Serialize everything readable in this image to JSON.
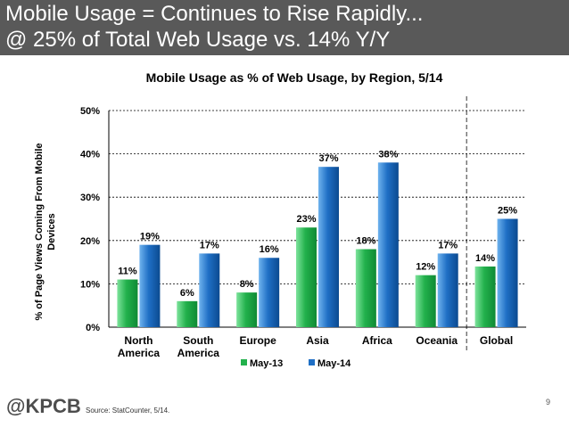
{
  "slide": {
    "title_line1": "Mobile Usage = Continues to Rise Rapidly...",
    "title_line2": "@ 25% of Total Web Usage vs. 14% Y/Y",
    "logo": "@KPCB",
    "source": "Source: StatCounter, 5/14.",
    "page_number": "9"
  },
  "colors": {
    "header_bg": "#595959",
    "may13": "#22b14c",
    "may14": "#1f6fc5",
    "text": "#000000"
  },
  "chart_data": {
    "type": "bar",
    "title": "Mobile Usage as % of Web Usage, by Region, 5/14",
    "ylabel": "% of Page Views Coming From Mobile Devices",
    "ylabel_lines": [
      "% of Page Views Coming From Mobile",
      "Devices"
    ],
    "xlabel": "",
    "ylim": [
      0,
      50
    ],
    "yticks": [
      "0%",
      "10%",
      "20%",
      "30%",
      "40%",
      "50%"
    ],
    "categories": [
      [
        "North",
        "America"
      ],
      [
        "South",
        "America"
      ],
      [
        "Europe"
      ],
      [
        "Asia"
      ],
      [
        "Africa"
      ],
      [
        "Oceania"
      ],
      [
        "Global"
      ]
    ],
    "series": [
      {
        "name": "May-13",
        "values": [
          11,
          6,
          8,
          23,
          18,
          12,
          14
        ],
        "labels": [
          "11%",
          "6%",
          "8%",
          "23%",
          "18%",
          "12%",
          "14%"
        ]
      },
      {
        "name": "May-14",
        "values": [
          19,
          17,
          16,
          37,
          38,
          17,
          25
        ],
        "labels": [
          "19%",
          "17%",
          "16%",
          "37%",
          "38%",
          "17%",
          "25%"
        ]
      }
    ],
    "grid": "horizontal dashed",
    "legend": "bottom-center",
    "separator_before": "Global"
  }
}
